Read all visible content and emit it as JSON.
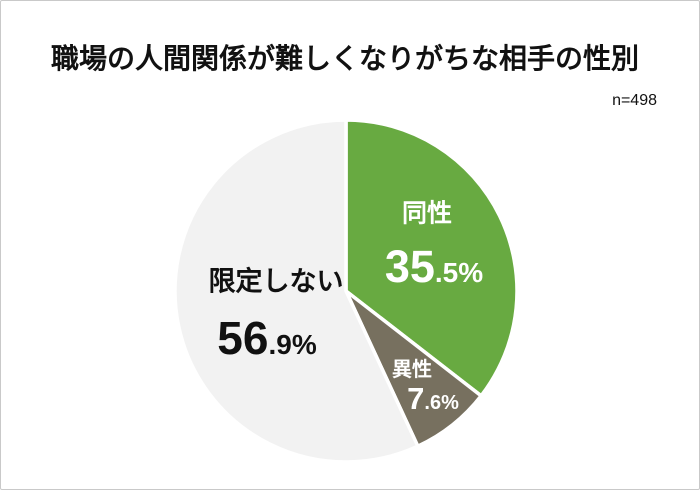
{
  "chart": {
    "title": "職場の人間関係が難しくなりがちな相手の性別",
    "sample_size_label": "n=498"
  },
  "chart_data": {
    "type": "pie",
    "title": "職場の人間関係が難しくなりがちな相手の性別",
    "sample_size": "n=498",
    "start_angle_deg": 0,
    "direction": "clockwise",
    "separator_color": "#ffffff",
    "slices": [
      {
        "label": "同性",
        "value": 35.5,
        "value_int": "35",
        "value_frac": ".5%",
        "color": "#68aa41",
        "text_color": "#ffffff"
      },
      {
        "label": "異性",
        "value": 7.6,
        "value_int": "7",
        "value_frac": ".6%",
        "color": "#77705f",
        "text_color": "#ffffff"
      },
      {
        "label": "限定しない",
        "value": 56.9,
        "value_int": "56",
        "value_frac": ".9%",
        "color": "#f2f2f2",
        "text_color": "#111111"
      }
    ]
  }
}
